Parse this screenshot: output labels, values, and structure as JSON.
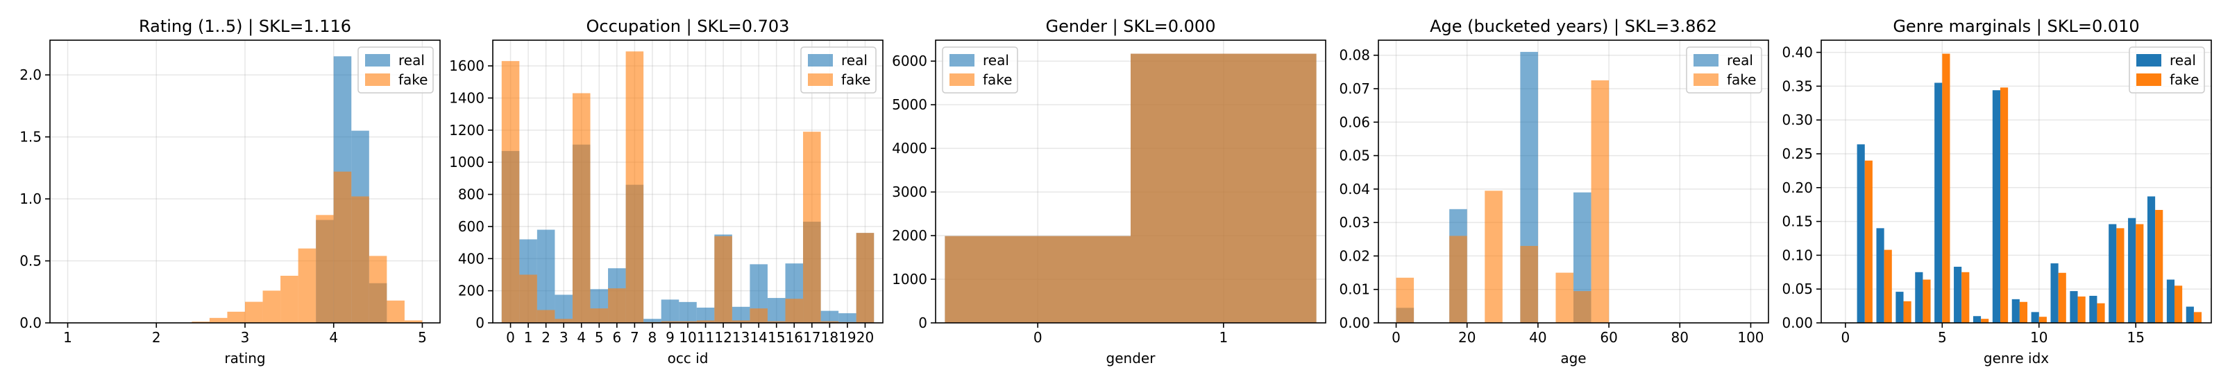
{
  "figure": {
    "colors": {
      "real": "#1f77b4",
      "fake": "#ff7f0e",
      "overlap": "#bc8a5f"
    }
  },
  "chart_data": [
    {
      "type": "bar",
      "title": "Rating (1..5) | SKL=1.116",
      "xlabel": "rating",
      "ylabel": "",
      "xlim": [
        0.8,
        5.2
      ],
      "ylim": [
        0,
        2.28
      ],
      "xticks": [
        "1",
        "2",
        "3",
        "4",
        "5"
      ],
      "yticks": [
        "0.0",
        "0.5",
        "1.0",
        "1.5",
        "2.0"
      ],
      "legend": "top-right",
      "style": "overlaid-histogram",
      "bin_edges": [
        1.0,
        1.2,
        1.4,
        1.6,
        1.8,
        2.0,
        2.2,
        2.4,
        2.6,
        2.8,
        3.0,
        3.2,
        3.4,
        3.6,
        3.8,
        4.0,
        4.2,
        4.4,
        4.6,
        4.8,
        5.0
      ],
      "series": [
        {
          "name": "real",
          "values": [
            0,
            0,
            0,
            0,
            0,
            0,
            0,
            0,
            0,
            0,
            0,
            0,
            0,
            0,
            0.83,
            2.15,
            1.55,
            0.32,
            0,
            0
          ]
        },
        {
          "name": "fake",
          "values": [
            0,
            0,
            0,
            0,
            0,
            0,
            0,
            0.01,
            0.04,
            0.09,
            0.17,
            0.26,
            0.38,
            0.6,
            0.87,
            1.22,
            1.02,
            0.54,
            0.18,
            0.02
          ]
        }
      ]
    },
    {
      "type": "bar",
      "title": "Occupation | SKL=0.703",
      "xlabel": "occ id",
      "ylabel": "",
      "xlim": [
        -1,
        21
      ],
      "ylim": [
        0,
        1760
      ],
      "xticks": [
        "0",
        "1",
        "2",
        "3",
        "4",
        "5",
        "6",
        "7",
        "8",
        "9",
        "10",
        "11",
        "12",
        "13",
        "14",
        "15",
        "16",
        "17",
        "18",
        "19",
        "20"
      ],
      "yticks": [
        "0",
        "200",
        "400",
        "600",
        "800",
        "1000",
        "1200",
        "1400",
        "1600"
      ],
      "legend": "top-right",
      "style": "overlaid-histogram",
      "bin_edges": [
        -0.5,
        0.5,
        1.5,
        2.5,
        3.5,
        4.5,
        5.5,
        6.5,
        7.5,
        8.5,
        9.5,
        10.5,
        11.5,
        12.5,
        13.5,
        14.5,
        15.5,
        16.5,
        17.5,
        18.5,
        19.5,
        20.5
      ],
      "series": [
        {
          "name": "real",
          "values": [
            1070,
            520,
            580,
            175,
            1110,
            210,
            340,
            860,
            25,
            145,
            130,
            95,
            550,
            100,
            365,
            155,
            370,
            630,
            75,
            60,
            560
          ]
        },
        {
          "name": "fake",
          "values": [
            1630,
            300,
            80,
            25,
            1430,
            90,
            215,
            1690,
            5,
            10,
            10,
            15,
            540,
            15,
            90,
            10,
            150,
            1190,
            10,
            5,
            560
          ]
        }
      ]
    },
    {
      "type": "bar",
      "title": "Gender | SKL=0.000",
      "xlabel": "gender",
      "ylabel": "",
      "xlim": [
        -0.55,
        1.55
      ],
      "ylim": [
        0,
        6480
      ],
      "xticks": [
        "0",
        "1"
      ],
      "yticks": [
        "0",
        "1000",
        "2000",
        "3000",
        "4000",
        "5000",
        "6000"
      ],
      "legend": "top-left",
      "style": "overlaid-histogram",
      "bin_edges": [
        -0.5,
        0.5,
        1.5
      ],
      "series": [
        {
          "name": "real",
          "values": [
            1990,
            6170
          ]
        },
        {
          "name": "fake",
          "values": [
            1990,
            6170
          ]
        }
      ]
    },
    {
      "type": "bar",
      "title": "Age (bucketed years) | SKL=3.862",
      "xlabel": "age",
      "ylabel": "",
      "xlim": [
        -5,
        105
      ],
      "ylim": [
        0,
        0.0845
      ],
      "xticks": [
        "0",
        "20",
        "40",
        "60",
        "80",
        "100"
      ],
      "yticks": [
        "0.00",
        "0.01",
        "0.02",
        "0.03",
        "0.04",
        "0.05",
        "0.06",
        "0.07",
        "0.08"
      ],
      "legend": "top-right",
      "style": "overlaid-histogram",
      "bin_edges": [
        0,
        5,
        10,
        15,
        20,
        25,
        30,
        35,
        40,
        45,
        50,
        55,
        60,
        65,
        70,
        75,
        80,
        85,
        90,
        95,
        100
      ],
      "series": [
        {
          "name": "real",
          "values": [
            0.0045,
            0,
            0,
            0.034,
            0,
            0,
            0,
            0.081,
            0,
            0,
            0.039,
            0,
            0,
            0,
            0,
            0,
            0,
            0,
            0,
            0
          ]
        },
        {
          "name": "fake",
          "values": [
            0.0135,
            0,
            0,
            0.026,
            0,
            0.0395,
            0,
            0.023,
            0,
            0.015,
            0.0095,
            0.0725,
            0,
            0,
            0,
            0,
            0,
            0,
            0,
            0
          ]
        }
      ]
    },
    {
      "type": "bar",
      "title": "Genre marginals | SKL=0.010",
      "xlabel": "genre idx",
      "ylabel": "",
      "xlim": [
        -1.25,
        18.9
      ],
      "ylim": [
        0,
        0.418
      ],
      "xticks": [
        "0",
        "5",
        "10",
        "15"
      ],
      "yticks": [
        "0.00",
        "0.05",
        "0.10",
        "0.15",
        "0.20",
        "0.25",
        "0.30",
        "0.35",
        "0.40"
      ],
      "legend": "top-right",
      "style": "grouped",
      "categories": [
        "0",
        "1",
        "2",
        "3",
        "4",
        "5",
        "6",
        "7",
        "8",
        "9",
        "10",
        "11",
        "12",
        "13",
        "14",
        "15",
        "16",
        "17",
        "18"
      ],
      "series": [
        {
          "name": "real",
          "values": [
            0,
            0.264,
            0.14,
            0.046,
            0.075,
            0.355,
            0.083,
            0.01,
            0.344,
            0.035,
            0.016,
            0.088,
            0.047,
            0.04,
            0.146,
            0.155,
            0.187,
            0.064,
            0.024
          ]
        },
        {
          "name": "fake",
          "values": [
            0,
            0.24,
            0.108,
            0.032,
            0.064,
            0.398,
            0.075,
            0.006,
            0.348,
            0.031,
            0.009,
            0.074,
            0.039,
            0.029,
            0.14,
            0.146,
            0.167,
            0.055,
            0.016
          ]
        }
      ]
    }
  ]
}
